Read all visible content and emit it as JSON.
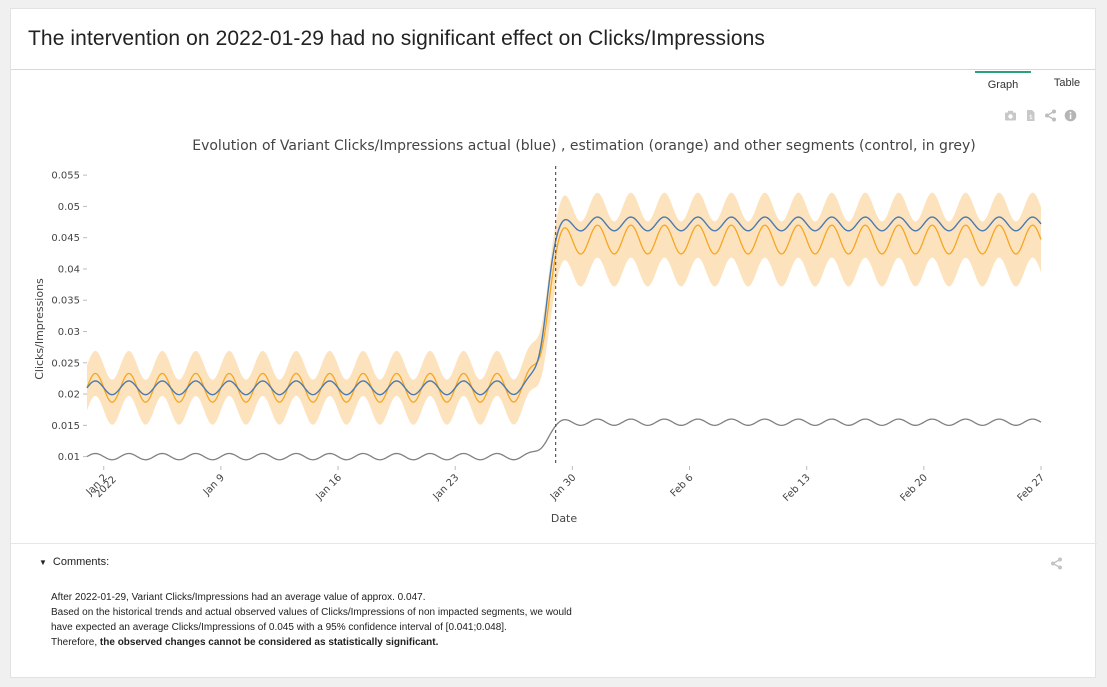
{
  "page": {
    "title": "The intervention on 2022-01-29 had no significant effect on Clicks/Impressions",
    "tabs": [
      {
        "label": "Graph",
        "active": true
      },
      {
        "label": "Table",
        "active": false
      }
    ],
    "toolbar_icons": [
      "camera-icon",
      "export-icon",
      "share-icon",
      "info-icon"
    ]
  },
  "chart_data": {
    "type": "line",
    "title": "Evolution of Variant Clicks/Impressions actual (blue) , estimation (orange) and other segments (control, in grey)",
    "xlabel": "Date",
    "ylabel": "Clicks/Impressions",
    "x_range": [
      "2022-01-01",
      "2022-02-27"
    ],
    "ylim": [
      0.0085,
      0.0555
    ],
    "x_ticks": [
      {
        "date": "2022-01-02",
        "label": "Jan 2",
        "sublabel": "2022"
      },
      {
        "date": "2022-01-09",
        "label": "Jan 9"
      },
      {
        "date": "2022-01-16",
        "label": "Jan 16"
      },
      {
        "date": "2022-01-23",
        "label": "Jan 23"
      },
      {
        "date": "2022-01-30",
        "label": "Jan 30"
      },
      {
        "date": "2022-02-06",
        "label": "Feb 6"
      },
      {
        "date": "2022-02-13",
        "label": "Feb 13"
      },
      {
        "date": "2022-02-20",
        "label": "Feb 20"
      },
      {
        "date": "2022-02-27",
        "label": "Feb 27"
      }
    ],
    "y_ticks": [
      "0.01",
      "0.015",
      "0.02",
      "0.025",
      "0.03",
      "0.035",
      "0.04",
      "0.045",
      "0.05",
      "0.055"
    ],
    "intervention_date": "2022-01-29",
    "colors": {
      "actual": "#4a7ab0",
      "estimation": "#f5a623",
      "band": "#fde3bd",
      "control": "#808080",
      "intervention": "#555555"
    },
    "series": [
      {
        "key": "actual",
        "pre_level": 0.021,
        "post_level": 0.0472,
        "amplitude": 0.0011,
        "period_days": 2
      },
      {
        "key": "estimation",
        "pre_level": 0.021,
        "post_level": 0.0447,
        "amplitude": 0.0023,
        "period_days": 2,
        "ci_halfwidth_pre": 0.0036,
        "ci_halfwidth_post": 0.0052
      },
      {
        "key": "control",
        "pre_level": 0.01,
        "post_level": 0.0155,
        "amplitude": 0.0005,
        "period_days": 2
      }
    ]
  },
  "comments": {
    "toggle_label": "Comments:",
    "line1": "After 2022-01-29, Variant Clicks/Impressions had an average value of approx. 0.047.",
    "line2": "Based on the historical trends and actual observed values of Clicks/Impressions of non impacted segments, we would",
    "line3": "have expected an average Clicks/Impressions of 0.045 with a 95% confidence interval of [0.041;0.048].",
    "line4_prefix": "Therefore, ",
    "line4_bold": "the observed changes cannot be considered as statistically significant."
  }
}
